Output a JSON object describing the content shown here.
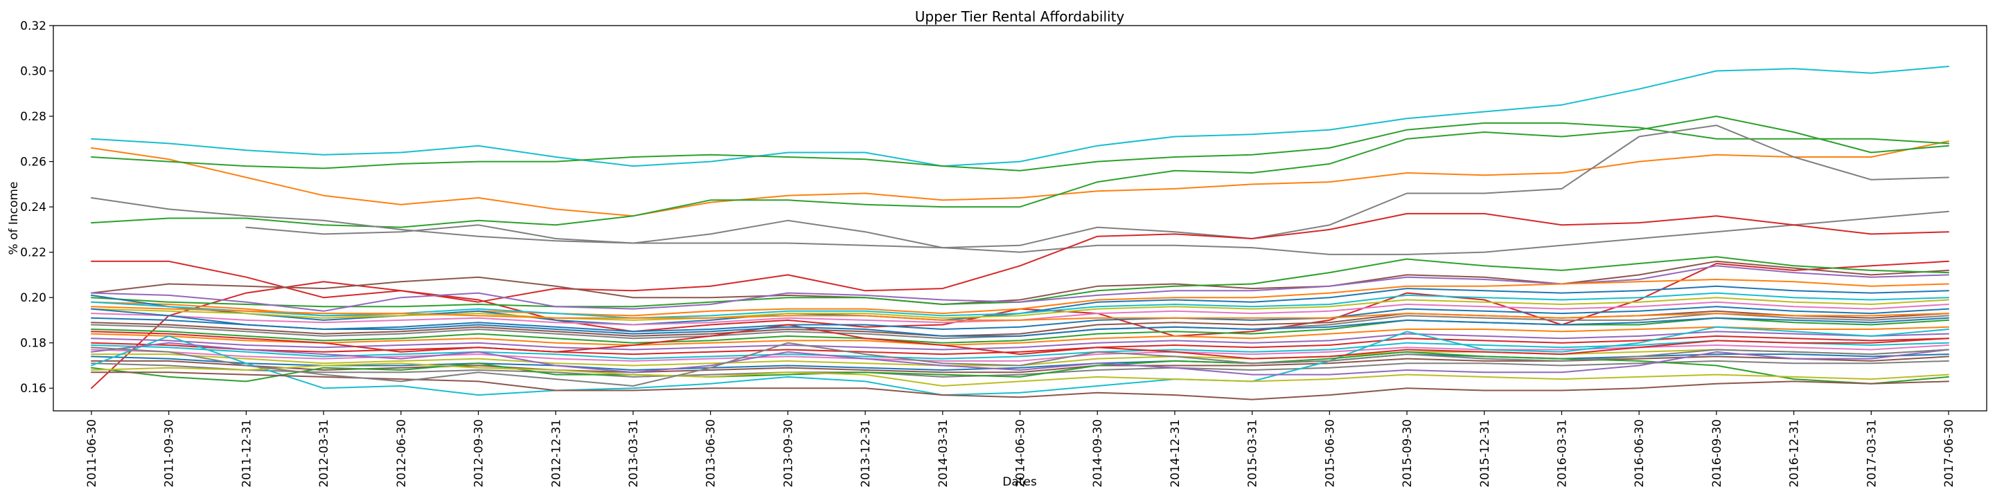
{
  "chart_data": {
    "type": "line",
    "title": "Upper Tier Rental Affordability",
    "xlabel": "Dates",
    "ylabel": "% of Income",
    "ylim": [
      0.15,
      0.32
    ],
    "yticks": [
      "0.16",
      "0.18",
      "0.20",
      "0.22",
      "0.24",
      "0.26",
      "0.28",
      "0.30",
      "0.32"
    ],
    "grid": false,
    "legend": "none",
    "x": [
      "2011-06-30",
      "2011-09-30",
      "2011-12-31",
      "2012-03-31",
      "2012-06-30",
      "2012-09-30",
      "2012-12-31",
      "2013-03-31",
      "2013-06-30",
      "2013-09-30",
      "2013-12-31",
      "2014-03-31",
      "2014-06-30",
      "2014-09-30",
      "2014-12-31",
      "2015-03-31",
      "2015-06-30",
      "2015-09-30",
      "2015-12-31",
      "2016-03-31",
      "2016-06-30",
      "2016-09-30",
      "2016-12-31",
      "2017-03-31",
      "2017-06-30"
    ],
    "series": [
      {
        "color": "#17becf",
        "values": [
          0.27,
          0.268,
          0.265,
          0.263,
          0.264,
          0.267,
          0.262,
          0.258,
          0.26,
          0.264,
          0.264,
          0.258,
          0.26,
          0.267,
          0.271,
          0.272,
          0.274,
          0.279,
          0.282,
          0.285,
          0.292,
          0.3,
          0.301,
          0.299,
          0.302
        ]
      },
      {
        "color": "#ff7f0e",
        "values": [
          0.266,
          0.261,
          0.253,
          0.245,
          0.241,
          0.244,
          0.239,
          0.236,
          0.242,
          0.245,
          0.246,
          0.243,
          0.244,
          0.247,
          0.248,
          0.25,
          0.251,
          0.255,
          0.254,
          0.255,
          0.26,
          0.263,
          0.262,
          0.262,
          0.269
        ]
      },
      {
        "color": "#2ca02c",
        "values": [
          0.262,
          0.26,
          0.258,
          0.257,
          0.259,
          0.26,
          0.26,
          0.262,
          0.263,
          0.262,
          0.261,
          0.258,
          0.256,
          0.26,
          0.262,
          0.263,
          0.266,
          0.274,
          0.277,
          0.277,
          0.275,
          0.27,
          0.27,
          0.27,
          0.268
        ]
      },
      {
        "color": "#2ca02c",
        "values": [
          0.233,
          0.235,
          0.235,
          0.232,
          0.231,
          0.234,
          0.232,
          0.236,
          0.243,
          0.243,
          0.241,
          0.24,
          0.24,
          0.251,
          0.256,
          0.255,
          0.259,
          0.27,
          0.273,
          0.271,
          0.274,
          0.28,
          0.273,
          0.264,
          0.267
        ]
      },
      {
        "color": "#7f7f7f",
        "values": [
          0.244,
          0.239,
          0.236,
          0.234,
          0.23,
          0.227,
          0.225,
          0.224,
          0.228,
          0.234,
          0.229,
          0.222,
          0.223,
          0.231,
          0.229,
          0.226,
          0.232,
          0.246,
          0.246,
          0.248,
          0.271,
          0.276,
          0.262,
          0.252,
          0.253
        ]
      },
      {
        "color": "#7f7f7f",
        "values": [
          null,
          null,
          0.231,
          0.228,
          0.229,
          0.232,
          0.226,
          0.224,
          0.224,
          0.224,
          0.223,
          0.222,
          0.22,
          0.223,
          0.223,
          0.222,
          0.219,
          0.219,
          0.22,
          0.223,
          0.226,
          0.229,
          0.232,
          0.235,
          0.238
        ]
      },
      {
        "color": "#d62728",
        "values": [
          0.216,
          0.216,
          0.209,
          0.2,
          0.203,
          0.198,
          0.204,
          0.203,
          0.205,
          0.21,
          0.203,
          0.204,
          0.214,
          0.227,
          0.228,
          0.226,
          0.23,
          0.237,
          0.237,
          0.232,
          0.233,
          0.236,
          0.232,
          0.228,
          0.229
        ]
      },
      {
        "color": "#d62728",
        "values": [
          0.16,
          0.192,
          0.202,
          0.207,
          0.203,
          0.199,
          0.19,
          0.185,
          0.188,
          0.19,
          0.187,
          0.188,
          0.195,
          0.193,
          0.183,
          0.185,
          0.19,
          0.202,
          0.199,
          0.188,
          0.199,
          0.215,
          0.212,
          0.214,
          0.216
        ]
      },
      {
        "color": "#8c564b",
        "values": [
          0.202,
          0.206,
          0.205,
          0.204,
          0.207,
          0.209,
          0.205,
          0.2,
          0.2,
          0.201,
          0.2,
          0.197,
          0.199,
          0.205,
          0.206,
          0.204,
          0.205,
          0.21,
          0.209,
          0.206,
          0.21,
          0.216,
          0.213,
          0.21,
          0.212
        ]
      },
      {
        "color": "#2ca02c",
        "values": [
          0.2,
          0.198,
          0.197,
          0.196,
          0.196,
          0.197,
          0.196,
          0.196,
          0.198,
          0.2,
          0.2,
          0.197,
          0.198,
          0.203,
          0.205,
          0.206,
          0.211,
          0.217,
          0.214,
          0.212,
          0.215,
          0.218,
          0.214,
          0.212,
          0.211
        ]
      },
      {
        "color": "#9467bd",
        "values": [
          0.202,
          0.201,
          0.198,
          0.194,
          0.2,
          0.202,
          0.196,
          0.195,
          0.197,
          0.202,
          0.201,
          0.199,
          0.198,
          0.201,
          0.203,
          0.203,
          0.205,
          0.209,
          0.208,
          0.206,
          0.208,
          0.214,
          0.211,
          0.209,
          0.21
        ]
      },
      {
        "color": "#ff7f0e",
        "values": [
          0.198,
          0.197,
          0.195,
          0.192,
          0.192,
          0.194,
          0.193,
          0.192,
          0.194,
          0.195,
          0.195,
          0.193,
          0.195,
          0.199,
          0.2,
          0.2,
          0.202,
          0.205,
          0.205,
          0.206,
          0.207,
          0.208,
          0.207,
          0.205,
          0.206
        ]
      },
      {
        "color": "#1f77b4",
        "values": [
          0.201,
          0.196,
          0.193,
          0.19,
          0.192,
          0.194,
          0.19,
          0.188,
          0.19,
          0.193,
          0.192,
          0.19,
          0.193,
          0.198,
          0.199,
          0.198,
          0.2,
          0.204,
          0.203,
          0.202,
          0.203,
          0.205,
          0.203,
          0.202,
          0.203
        ]
      },
      {
        "color": "#17becf",
        "values": [
          0.198,
          0.196,
          0.194,
          0.192,
          0.193,
          0.195,
          0.193,
          0.191,
          0.192,
          0.194,
          0.194,
          0.192,
          0.193,
          0.196,
          0.197,
          0.196,
          0.197,
          0.201,
          0.2,
          0.199,
          0.2,
          0.202,
          0.2,
          0.199,
          0.2
        ]
      },
      {
        "color": "#bcbd22",
        "values": [
          0.195,
          0.194,
          0.193,
          0.191,
          0.192,
          0.193,
          0.191,
          0.19,
          0.191,
          0.193,
          0.193,
          0.191,
          0.192,
          0.195,
          0.196,
          0.195,
          0.196,
          0.199,
          0.198,
          0.197,
          0.198,
          0.2,
          0.198,
          0.197,
          0.199
        ]
      },
      {
        "color": "#e377c2",
        "values": [
          0.193,
          0.192,
          0.19,
          0.189,
          0.19,
          0.191,
          0.189,
          0.188,
          0.189,
          0.191,
          0.19,
          0.189,
          0.19,
          0.193,
          0.194,
          0.193,
          0.194,
          0.197,
          0.196,
          0.195,
          0.196,
          0.198,
          0.196,
          0.195,
          0.197
        ]
      },
      {
        "color": "#1f77b4",
        "values": [
          0.191,
          0.19,
          0.188,
          0.186,
          0.187,
          0.189,
          0.187,
          0.185,
          0.186,
          0.188,
          0.188,
          0.186,
          0.187,
          0.19,
          0.191,
          0.19,
          0.191,
          0.195,
          0.194,
          0.193,
          0.194,
          0.196,
          0.194,
          0.193,
          0.195
        ]
      },
      {
        "color": "#8c564b",
        "values": [
          0.189,
          0.188,
          0.186,
          0.184,
          0.185,
          0.187,
          0.185,
          0.183,
          0.184,
          0.186,
          0.185,
          0.183,
          0.184,
          0.188,
          0.189,
          0.188,
          0.189,
          0.193,
          0.192,
          0.191,
          0.192,
          0.194,
          0.192,
          0.191,
          0.193
        ]
      },
      {
        "color": "#7f7f7f",
        "values": [
          0.188,
          0.187,
          0.185,
          0.183,
          0.184,
          0.186,
          0.184,
          0.182,
          0.183,
          0.185,
          0.184,
          0.182,
          0.183,
          0.186,
          0.187,
          0.186,
          0.188,
          0.192,
          0.191,
          0.19,
          0.19,
          0.193,
          0.191,
          0.19,
          0.192
        ]
      },
      {
        "color": "#2ca02c",
        "values": [
          0.186,
          0.185,
          0.183,
          0.181,
          0.182,
          0.184,
          0.182,
          0.18,
          0.181,
          0.183,
          0.182,
          0.18,
          0.181,
          0.184,
          0.185,
          0.184,
          0.186,
          0.19,
          0.189,
          0.188,
          0.188,
          0.191,
          0.189,
          0.188,
          0.19
        ]
      },
      {
        "color": "#ff7f0e",
        "values": [
          0.184,
          0.183,
          0.181,
          0.18,
          0.181,
          0.182,
          0.18,
          0.179,
          0.18,
          0.181,
          0.181,
          0.179,
          0.18,
          0.182,
          0.183,
          0.182,
          0.184,
          0.186,
          0.186,
          0.185,
          0.186,
          0.187,
          0.186,
          0.186,
          0.187
        ]
      },
      {
        "color": "#9467bd",
        "values": [
          0.182,
          0.181,
          0.179,
          0.178,
          0.179,
          0.18,
          0.178,
          0.177,
          0.178,
          0.179,
          0.178,
          0.177,
          0.178,
          0.18,
          0.181,
          0.18,
          0.181,
          0.184,
          0.183,
          0.182,
          0.183,
          0.185,
          0.184,
          0.183,
          0.184
        ]
      },
      {
        "color": "#d62728",
        "values": [
          0.18,
          0.179,
          0.177,
          0.176,
          0.177,
          0.178,
          0.176,
          0.175,
          0.176,
          0.177,
          0.176,
          0.175,
          0.176,
          0.178,
          0.179,
          0.178,
          0.179,
          0.182,
          0.181,
          0.18,
          0.181,
          0.183,
          0.182,
          0.181,
          0.182
        ]
      },
      {
        "color": "#17becf",
        "values": [
          0.179,
          0.178,
          0.176,
          0.174,
          0.175,
          0.176,
          0.175,
          0.173,
          0.174,
          0.175,
          0.174,
          0.173,
          0.174,
          0.176,
          0.177,
          0.176,
          0.177,
          0.18,
          0.179,
          0.178,
          0.179,
          0.181,
          0.18,
          0.179,
          0.18
        ]
      },
      {
        "color": "#e377c2",
        "values": [
          0.177,
          0.176,
          0.174,
          0.173,
          0.174,
          0.175,
          0.173,
          0.172,
          0.173,
          0.174,
          0.173,
          0.172,
          0.172,
          0.175,
          0.176,
          0.175,
          0.176,
          0.178,
          0.177,
          0.177,
          0.178,
          0.179,
          0.178,
          0.177,
          0.179
        ]
      },
      {
        "color": "#bcbd22",
        "values": [
          0.175,
          0.175,
          0.173,
          0.171,
          0.172,
          0.173,
          0.171,
          0.17,
          0.171,
          0.172,
          0.171,
          0.17,
          0.17,
          0.173,
          0.174,
          0.173,
          0.174,
          0.176,
          0.176,
          0.175,
          0.176,
          0.177,
          0.176,
          0.175,
          0.177
        ]
      },
      {
        "color": "#1f77b4",
        "values": [
          0.174,
          0.173,
          0.171,
          0.17,
          0.17,
          0.171,
          0.17,
          0.168,
          0.169,
          0.17,
          0.169,
          0.168,
          0.169,
          0.171,
          0.172,
          0.171,
          0.172,
          0.175,
          0.174,
          0.173,
          0.174,
          0.175,
          0.175,
          0.174,
          0.175
        ]
      },
      {
        "color": "#8c564b",
        "values": [
          0.172,
          0.172,
          0.17,
          0.168,
          0.169,
          0.17,
          0.168,
          0.167,
          0.168,
          0.169,
          0.168,
          0.167,
          0.167,
          0.17,
          0.17,
          0.17,
          0.171,
          0.173,
          0.172,
          0.172,
          0.173,
          0.174,
          0.173,
          0.172,
          0.174
        ]
      },
      {
        "color": "#7f7f7f",
        "values": [
          0.171,
          0.17,
          0.168,
          0.167,
          0.167,
          0.168,
          0.167,
          0.165,
          0.166,
          0.167,
          0.167,
          0.165,
          0.166,
          0.168,
          0.169,
          0.168,
          0.169,
          0.171,
          0.171,
          0.17,
          0.171,
          0.172,
          0.171,
          0.171,
          0.172
        ]
      },
      {
        "color": "#17becf",
        "values": [
          0.17,
          0.183,
          0.171,
          0.16,
          0.161,
          0.157,
          0.159,
          0.16,
          0.162,
          0.165,
          0.163,
          0.157,
          0.158,
          0.161,
          0.164,
          0.163,
          0.172,
          0.185,
          0.177,
          0.176,
          0.18,
          0.187,
          0.185,
          0.183,
          0.186
        ]
      },
      {
        "color": "#2ca02c",
        "values": [
          0.169,
          0.165,
          0.163,
          0.169,
          0.168,
          0.171,
          0.166,
          0.166,
          0.165,
          0.166,
          0.167,
          0.166,
          0.165,
          0.17,
          0.172,
          0.171,
          0.173,
          0.176,
          0.174,
          0.173,
          0.172,
          0.17,
          0.164,
          0.162,
          0.165
        ]
      },
      {
        "color": "#8c564b",
        "values": [
          0.167,
          0.167,
          0.166,
          0.165,
          0.164,
          0.163,
          0.159,
          0.159,
          0.16,
          0.16,
          0.16,
          0.157,
          0.156,
          0.158,
          0.157,
          0.155,
          0.157,
          0.16,
          0.159,
          0.159,
          0.16,
          0.162,
          0.163,
          0.162,
          0.163
        ]
      },
      {
        "color": "#ff7f0e",
        "values": [
          0.196,
          0.195,
          0.194,
          0.193,
          0.193,
          0.192,
          0.191,
          0.191,
          0.191,
          0.192,
          0.192,
          0.19,
          0.19,
          0.191,
          0.191,
          0.191,
          0.191,
          0.193,
          0.192,
          0.191,
          0.192,
          0.193,
          0.192,
          0.192,
          0.193
        ]
      },
      {
        "color": "#9467bd",
        "values": [
          0.176,
          0.18,
          0.177,
          0.175,
          0.173,
          0.176,
          0.17,
          0.167,
          0.17,
          0.176,
          0.173,
          0.17,
          0.168,
          0.171,
          0.169,
          0.166,
          0.166,
          0.168,
          0.167,
          0.167,
          0.17,
          0.176,
          0.173,
          0.173,
          0.177
        ]
      },
      {
        "color": "#bcbd22",
        "values": [
          0.168,
          0.169,
          0.168,
          0.17,
          0.171,
          0.169,
          0.168,
          0.166,
          0.165,
          0.167,
          0.166,
          0.161,
          0.163,
          0.165,
          0.164,
          0.163,
          0.164,
          0.166,
          0.165,
          0.164,
          0.165,
          0.166,
          0.165,
          0.164,
          0.166
        ]
      },
      {
        "color": "#d62728",
        "values": [
          0.185,
          0.184,
          0.182,
          0.18,
          0.176,
          0.178,
          0.176,
          0.179,
          0.183,
          0.188,
          0.182,
          0.179,
          0.175,
          0.178,
          0.176,
          0.173,
          0.174,
          0.177,
          0.176,
          0.175,
          0.178,
          0.181,
          0.18,
          0.18,
          0.182
        ]
      },
      {
        "color": "#7f7f7f",
        "values": [
          0.178,
          0.176,
          0.17,
          0.166,
          0.163,
          0.167,
          0.164,
          0.161,
          0.169,
          0.18,
          0.175,
          0.171,
          0.17,
          0.176,
          0.174,
          0.171,
          0.172,
          0.175,
          0.173,
          0.172,
          0.174,
          0.177,
          0.176,
          0.175,
          0.177
        ]
      },
      {
        "color": "#1f77b4",
        "values": [
          0.195,
          0.192,
          0.188,
          0.186,
          0.186,
          0.188,
          0.186,
          0.184,
          0.185,
          0.187,
          0.186,
          0.183,
          0.183,
          0.186,
          0.187,
          0.186,
          0.187,
          0.19,
          0.189,
          0.188,
          0.189,
          0.191,
          0.19,
          0.189,
          0.191
        ]
      }
    ]
  }
}
